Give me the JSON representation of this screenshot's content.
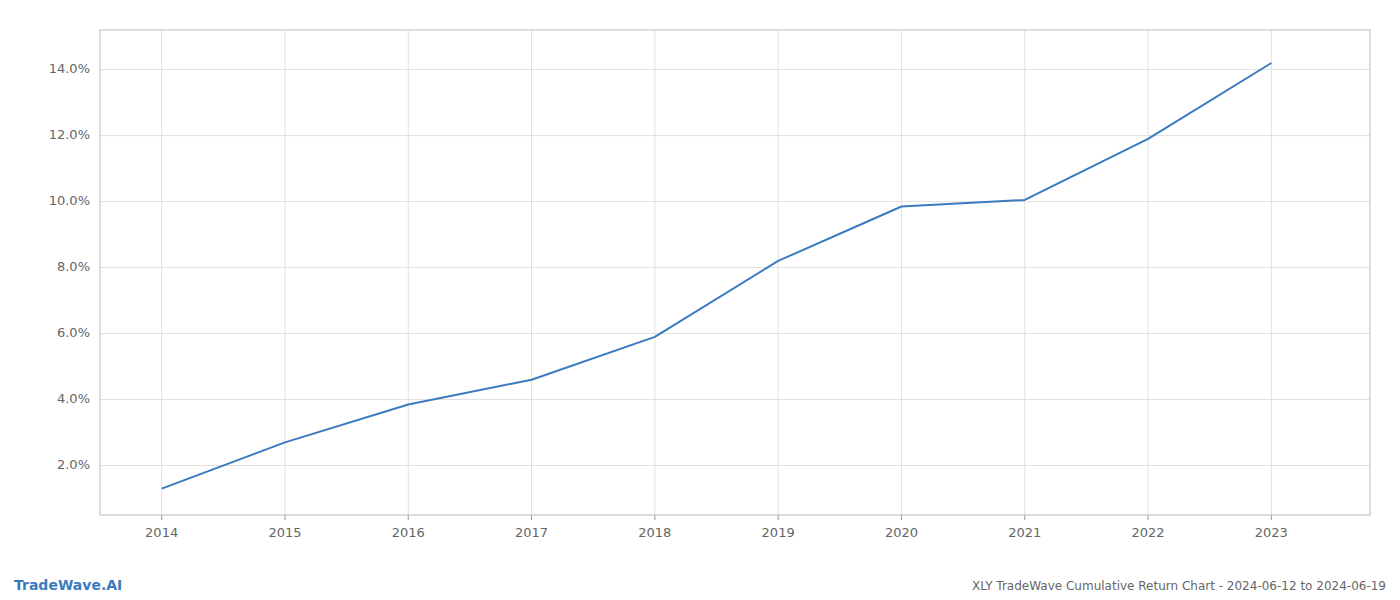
{
  "chart_data": {
    "type": "line",
    "title": "XLY TradeWave Cumulative Return Chart - 2024-06-12 to 2024-06-19",
    "annotations": [
      "TradeWave.AI"
    ],
    "x": [
      2014,
      2015,
      2016,
      2017,
      2018,
      2019,
      2020,
      2021,
      2022,
      2023
    ],
    "values": [
      1.3,
      2.7,
      3.85,
      4.6,
      5.9,
      8.2,
      9.85,
      10.05,
      11.9,
      14.2
    ],
    "color": "#3a7abf",
    "xlim": [
      2013.5,
      2023.8
    ],
    "ylim": [
      0.5,
      15.2
    ],
    "xticks": [
      2014,
      2015,
      2016,
      2017,
      2018,
      2019,
      2020,
      2021,
      2022,
      2023
    ],
    "yticks": [
      {
        "value": 2.0,
        "label": "2.0%"
      },
      {
        "value": 4.0,
        "label": "4.0%"
      },
      {
        "value": 6.0,
        "label": "6.0%"
      },
      {
        "value": 8.0,
        "label": "8.0%"
      },
      {
        "value": 10.0,
        "label": "10.0%"
      },
      {
        "value": 12.0,
        "label": "12.0%"
      },
      {
        "value": 14.0,
        "label": "14.0%"
      }
    ],
    "grid": true
  }
}
